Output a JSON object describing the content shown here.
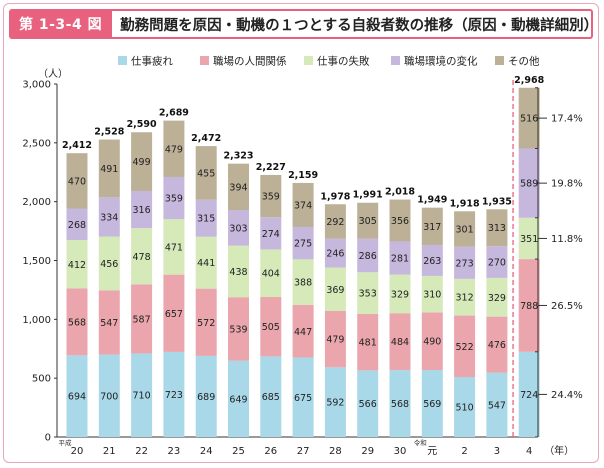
{
  "header": {
    "figure_label": "第 1-3-4 図",
    "title": "勤務問題を原因・動機の１つとする自殺者数の推移（原因・動機詳細別）"
  },
  "chart_data": {
    "type": "bar",
    "stacked": true,
    "ylabel": "（人）",
    "xlabel": "（年）",
    "ylim": [
      0,
      3000
    ],
    "yticks": [
      "0",
      "500",
      "1,000",
      "1,500",
      "2,000",
      "2,500",
      "3,000"
    ],
    "categories": [
      "20",
      "21",
      "22",
      "23",
      "24",
      "25",
      "26",
      "27",
      "28",
      "29",
      "30",
      "元",
      "2",
      "3",
      "4"
    ],
    "era_labels": [
      {
        "category": "20",
        "text": "平成"
      },
      {
        "category": "元",
        "text": "令和"
      }
    ],
    "series": [
      {
        "name": "仕事疲れ",
        "color": "#a9d9e9",
        "values": [
          694,
          700,
          710,
          723,
          689,
          649,
          685,
          675,
          592,
          566,
          568,
          569,
          510,
          547,
          724
        ]
      },
      {
        "name": "職場の人間関係",
        "color": "#eaa6ac",
        "values": [
          568,
          547,
          587,
          657,
          572,
          539,
          505,
          447,
          479,
          481,
          484,
          490,
          522,
          476,
          788
        ]
      },
      {
        "name": "仕事の失敗",
        "color": "#d6e9b9",
        "values": [
          412,
          456,
          478,
          471,
          441,
          438,
          404,
          388,
          369,
          353,
          329,
          310,
          312,
          329,
          351
        ]
      },
      {
        "name": "職場環境の変化",
        "color": "#c6b7dd",
        "values": [
          268,
          334,
          316,
          359,
          315,
          303,
          274,
          275,
          246,
          286,
          281,
          263,
          273,
          270,
          589
        ]
      },
      {
        "name": "その他",
        "color": "#bcb096",
        "values": [
          470,
          491,
          499,
          479,
          455,
          394,
          359,
          374,
          292,
          305,
          356,
          317,
          301,
          313,
          516
        ]
      }
    ],
    "totals": [
      "2,412",
      "2,528",
      "2,590",
      "2,689",
      "2,472",
      "2,323",
      "2,227",
      "2,159",
      "1,978",
      "1,991",
      "2,018",
      "1,949",
      "1,918",
      "1,935",
      "2,968"
    ],
    "last_bar_percentages": [
      "24.4%",
      "26.5%",
      "11.8%",
      "19.8%",
      "17.4%"
    ],
    "legend_position": "top",
    "grid": false
  }
}
